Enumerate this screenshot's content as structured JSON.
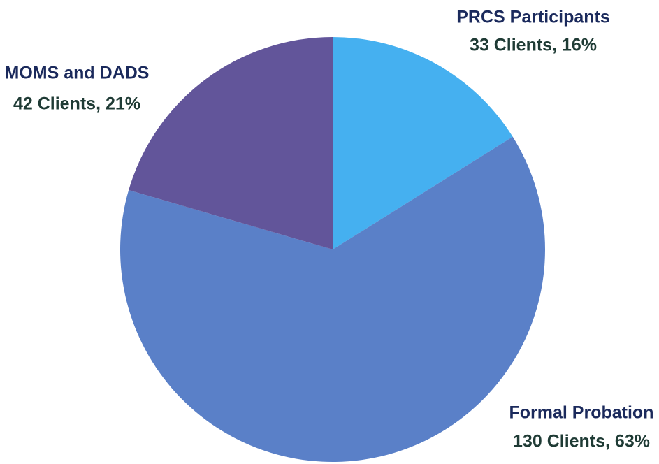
{
  "chart_data": {
    "type": "pie",
    "categories": [
      "PRCS Participants",
      "Formal Probation",
      "MOMS and DADS"
    ],
    "values": [
      33,
      130,
      42
    ],
    "value_labels": [
      "33 Clients, 16%",
      "130 Clients, 63%",
      "42 Clients, 21%"
    ],
    "colors": [
      "#45b0f0",
      "#5a80c8",
      "#62559a"
    ]
  }
}
